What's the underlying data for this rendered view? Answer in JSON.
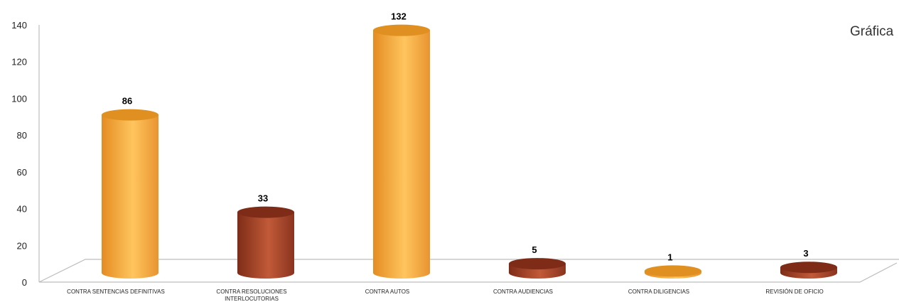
{
  "chart_data": {
    "type": "bar",
    "title": "Gráfica",
    "categories": [
      "CONTRA SENTENCIAS DEFINITIVAS",
      "CONTRA RESOLUCIONES INTERLOCUTORIAS",
      "CONTRA AUTOS",
      "CONTRA AUDIENCIAS",
      "CONTRA DILIGENCIAS",
      "REVISIÓN DE OFICIO"
    ],
    "values": [
      86,
      33,
      132,
      5,
      1,
      3
    ],
    "ylim": [
      0,
      140
    ],
    "yticks": [
      0,
      20,
      40,
      60,
      80,
      100,
      120,
      140
    ],
    "xlabel": "",
    "ylabel": "",
    "grid": false,
    "legend": "none",
    "bar_shape": "cylinder-3d",
    "colors": {
      "orange": "#f2a23a",
      "orange_light": "#ffc55e",
      "orange_top": "#e09020",
      "brown": "#9a3a22",
      "brown_light": "#c15a38",
      "brown_top": "#7e2c18"
    },
    "bar_color_pattern": [
      "orange",
      "brown",
      "orange",
      "brown",
      "orange",
      "brown"
    ]
  }
}
